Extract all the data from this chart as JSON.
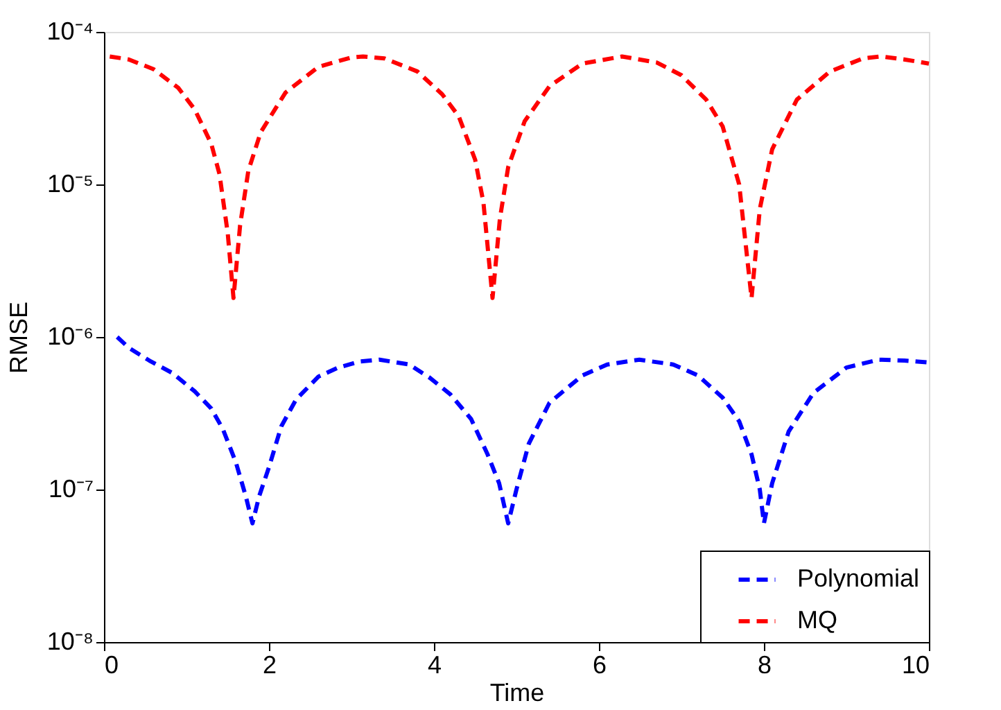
{
  "chart_data": {
    "type": "line",
    "xlabel": "Time",
    "ylabel": "RMSE",
    "log": true,
    "grid": false,
    "legend": "bottom right",
    "line_style": "dashed",
    "marker": "none",
    "xlim": [
      0,
      10
    ],
    "xticks": [
      0,
      2,
      4,
      6,
      8,
      10
    ],
    "ylim": [
      1e-08,
      0.0001
    ],
    "yticks": [
      {
        "value": 1e-08,
        "label": "10⁻⁸"
      },
      {
        "value": 1e-07,
        "label": "10⁻⁷"
      },
      {
        "value": 1e-06,
        "label": "10⁻⁶"
      },
      {
        "value": 1e-05,
        "label": "10⁻⁵"
      },
      {
        "value": 0.0001,
        "label": "10⁻⁴"
      }
    ],
    "series": [
      {
        "name": "Polynomial",
        "color": "#0000ff",
        "x": [
          0.16,
          0.3,
          0.55,
          0.83,
          1.1,
          1.3,
          1.44,
          1.6,
          1.72,
          1.8,
          1.88,
          2.0,
          2.15,
          2.33,
          2.6,
          2.84,
          3.1,
          3.34,
          3.7,
          3.95,
          4.2,
          4.45,
          4.65,
          4.79,
          4.9,
          5.0,
          5.15,
          5.4,
          5.8,
          6.1,
          6.49,
          6.9,
          7.2,
          7.5,
          7.7,
          7.85,
          7.95,
          8.0,
          8.1,
          8.3,
          8.6,
          9.0,
          9.39,
          9.7,
          10
        ],
        "values": [
          1e-06,
          8.5e-07,
          7e-07,
          5.8e-07,
          4.4e-07,
          3.4e-07,
          2.5e-07,
          1.5e-07,
          9e-08,
          6e-08,
          9e-08,
          1.4e-07,
          2.6e-07,
          3.9e-07,
          5.5e-07,
          6.3e-07,
          6.9e-07,
          7.1e-07,
          6.6e-07,
          5.4e-07,
          4.2e-07,
          2.9e-07,
          1.7e-07,
          1.1e-07,
          6e-08,
          1e-07,
          2e-07,
          3.7e-07,
          5.6e-07,
          6.6e-07,
          7.1e-07,
          6.6e-07,
          5.6e-07,
          4e-07,
          2.8e-07,
          1.7e-07,
          1e-07,
          6e-08,
          1.1e-07,
          2.4e-07,
          4.3e-07,
          6.3e-07,
          7.1e-07,
          7e-07,
          6.8e-07
        ]
      },
      {
        "name": "MQ",
        "color": "#ff0000",
        "x": [
          0.07,
          0.3,
          0.6,
          0.9,
          1.1,
          1.3,
          1.4,
          1.5,
          1.57,
          1.65,
          1.75,
          1.9,
          2.2,
          2.6,
          3.0,
          3.14,
          3.4,
          3.8,
          4.1,
          4.3,
          4.5,
          4.6,
          4.71,
          4.8,
          4.9,
          5.1,
          5.4,
          5.8,
          6.28,
          6.7,
          7.0,
          7.3,
          7.5,
          7.7,
          7.85,
          7.95,
          8.1,
          8.4,
          8.8,
          9.2,
          9.42,
          9.7,
          10
        ],
        "values": [
          6.9e-05,
          6.6e-05,
          5.7e-05,
          4.3e-05,
          3.1e-05,
          1.85e-05,
          1.17e-05,
          4.8e-06,
          1.8e-06,
          5.4e-06,
          1.23e-05,
          2.2e-05,
          4e-05,
          5.9e-05,
          6.8e-05,
          6.9e-05,
          6.7e-05,
          5.5e-05,
          3.9e-05,
          2.8e-05,
          1.45e-05,
          7.6e-06,
          1.8e-06,
          6e-06,
          1.3e-05,
          2.6e-05,
          4.4e-05,
          6.2e-05,
          6.9e-05,
          6.3e-05,
          5.2e-05,
          3.6e-05,
          2.4e-05,
          1e-05,
          1.8e-06,
          6.9e-06,
          1.7e-05,
          3.6e-05,
          5.5e-05,
          6.7e-05,
          6.9e-05,
          6.6e-05,
          6.2e-05
        ]
      }
    ]
  }
}
